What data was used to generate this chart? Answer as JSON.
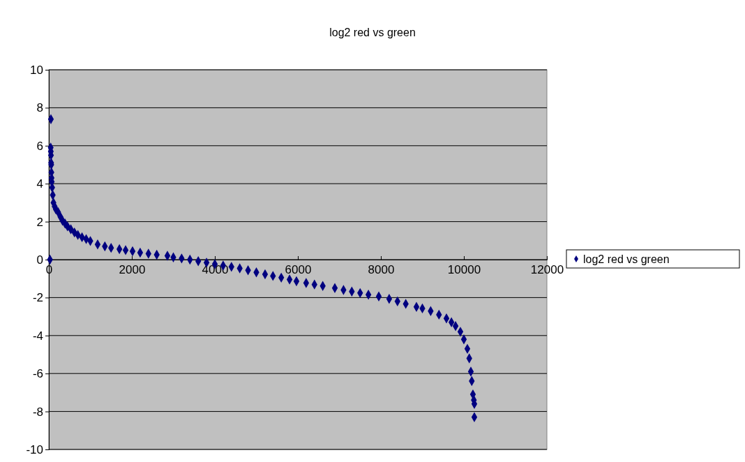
{
  "chart_data": {
    "type": "scatter",
    "title": "log2 red vs green",
    "marker": "diamond",
    "grid": "y",
    "legend": "right",
    "xlim": [
      0,
      12000
    ],
    "xticks": [
      0,
      2000,
      4000,
      6000,
      8000,
      10000,
      12000
    ],
    "ylim": [
      -10,
      10
    ],
    "yticks": [
      -10,
      -8,
      -6,
      -4,
      -2,
      0,
      2,
      4,
      6,
      8,
      10
    ],
    "series": [
      {
        "name": "log2 red vs green",
        "color": "#000080",
        "x": [
          28,
          50,
          45,
          48,
          52,
          55,
          58,
          62,
          66,
          70,
          80,
          95,
          112,
          140,
          170,
          224,
          280,
          330,
          390,
          450,
          530,
          617,
          700,
          800,
          900,
          1000,
          1176,
          1350,
          1500,
          1700,
          1850,
          2017,
          2200,
          2400,
          2600,
          2857,
          3000,
          3200,
          3400,
          3600,
          3800,
          4000,
          4200,
          4400,
          4600,
          4800,
          5000,
          5210,
          5400,
          5600,
          5800,
          5966,
          6200,
          6400,
          6600,
          6891,
          7100,
          7300,
          7500,
          7700,
          7950,
          8200,
          8400,
          8600,
          8857,
          9000,
          9200,
          9400,
          9580,
          9700,
          9800,
          9916,
          10000,
          10084,
          10130,
          10168,
          10190,
          10218,
          10240,
          10252,
          10252
        ],
        "values": [
          0,
          7.4,
          5.9,
          5.7,
          5.5,
          5.1,
          5.0,
          4.6,
          4.3,
          4.1,
          3.8,
          3.4,
          3.0,
          2.8,
          2.65,
          2.5,
          2.25,
          2.05,
          1.9,
          1.75,
          1.6,
          1.43,
          1.3,
          1.18,
          1.08,
          0.98,
          0.8,
          0.7,
          0.62,
          0.55,
          0.5,
          0.44,
          0.37,
          0.31,
          0.26,
          0.2,
          0.12,
          0.06,
          0,
          -0.08,
          -0.16,
          -0.24,
          -0.31,
          -0.38,
          -0.46,
          -0.56,
          -0.67,
          -0.77,
          -0.86,
          -0.95,
          -1.05,
          -1.14,
          -1.23,
          -1.31,
          -1.39,
          -1.5,
          -1.6,
          -1.68,
          -1.76,
          -1.85,
          -1.94,
          -2.07,
          -2.2,
          -2.33,
          -2.49,
          -2.57,
          -2.71,
          -2.9,
          -3.1,
          -3.3,
          -3.5,
          -3.8,
          -4.2,
          -4.7,
          -5.2,
          -5.9,
          -6.4,
          -7.1,
          -7.4,
          -7.6,
          -8.3
        ]
      }
    ]
  }
}
